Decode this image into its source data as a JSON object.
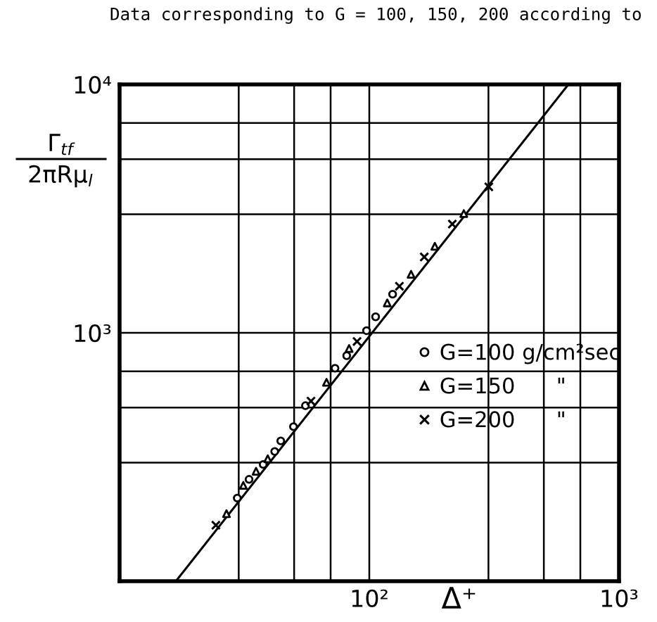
{
  "chart_data": {
    "type": "scatter",
    "title": "Data corresponding to G = 100, 150, 200 according to",
    "xlabel": "Δ⁺",
    "ylabel": "Γ$_{tf}$\n2πRμ$_{l}$",
    "log": "xy",
    "grid": true,
    "legend": "right",
    "xlim": [
      10,
      1000
    ],
    "ylim": [
      100,
      10000
    ],
    "xticks": [
      {
        "value": 30,
        "label": null
      },
      {
        "value": 50,
        "label": null
      },
      {
        "value": 70,
        "label": null
      },
      {
        "value": 100,
        "label": "10²"
      },
      {
        "value": 300,
        "label": null
      },
      {
        "value": 500,
        "label": null
      },
      {
        "value": 700,
        "label": null
      },
      {
        "value": 1000,
        "label": "10³"
      }
    ],
    "yticks": [
      {
        "value": 300,
        "label": null
      },
      {
        "value": 500,
        "label": null
      },
      {
        "value": 700,
        "label": null
      },
      {
        "value": 1000,
        "label": "10³"
      },
      {
        "value": 3000,
        "label": null
      },
      {
        "value": 5000,
        "label": null
      },
      {
        "value": 7000,
        "label": null
      },
      {
        "value": 10000,
        "label": "10⁴"
      }
    ],
    "series": [
      {
        "type": "line",
        "color": "#000000",
        "line_style": "solid",
        "x": [
          16.8,
          627
        ],
        "values": [
          100,
          10000
        ]
      },
      {
        "name": "G=100 g/cm²sec",
        "color": "#000000",
        "marker": "circle",
        "x": [
          29.6,
          33,
          37.6,
          41.8,
          44.2,
          49.7,
          55.5,
          72.9,
          81.2,
          97.5,
          106,
          124
        ],
        "values": [
          216,
          257,
          295,
          333,
          367,
          419,
          509,
          720,
          809,
          1020,
          1160,
          1430
        ]
      },
      {
        "name": "G=150      \"",
        "color": "#000000",
        "marker": "triangle",
        "x": [
          26.8,
          31.3,
          35.2,
          39.2,
          67.4,
          83,
          118,
          147,
          183,
          239
        ],
        "values": [
          187,
          243,
          277,
          311,
          632,
          865,
          1320,
          1720,
          2230,
          3020
        ]
      },
      {
        "name": "G=200      \"",
        "color": "#000000",
        "marker": "cross",
        "x": [
          24.3,
          58.4,
          89.3,
          132,
          166,
          215,
          301
        ],
        "values": [
          168,
          531,
          923,
          1540,
          2020,
          2740,
          3870
        ]
      }
    ]
  }
}
